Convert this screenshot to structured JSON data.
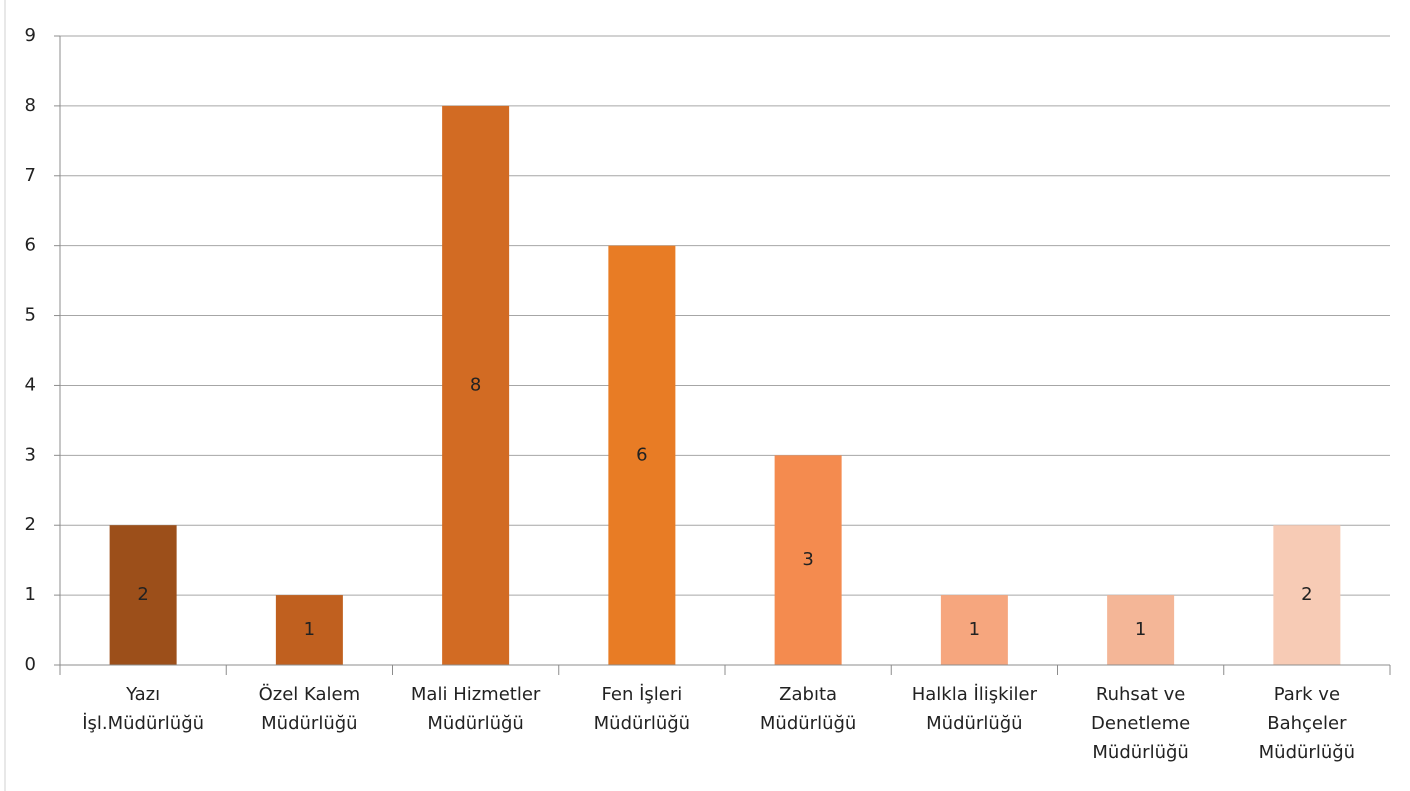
{
  "chart_data": {
    "type": "bar",
    "categories": [
      [
        "Yazı",
        "İşl.Müdürlüğü"
      ],
      [
        "Özel Kalem",
        "Müdürlüğü"
      ],
      [
        "Mali Hizmetler",
        "Müdürlüğü"
      ],
      [
        "Fen İşleri",
        "Müdürlüğü"
      ],
      [
        "Zabıta",
        "Müdürlüğü"
      ],
      [
        "Halkla İlişkiler",
        "Müdürlüğü"
      ],
      [
        "Ruhsat ve",
        "Denetleme",
        "Müdürlüğü"
      ],
      [
        "Park ve",
        "Bahçeler",
        "Müdürlüğü"
      ]
    ],
    "values": [
      2,
      1,
      8,
      6,
      3,
      1,
      1,
      2
    ],
    "colors": [
      "#9c4f1a",
      "#c0601f",
      "#d26b23",
      "#e87c25",
      "#f48b4f",
      "#f6a67e",
      "#f4b697",
      "#f7cbb5"
    ],
    "ylim": [
      0,
      9
    ],
    "yticks": [
      0,
      1,
      2,
      3,
      4,
      5,
      6,
      7,
      8,
      9
    ],
    "grid": true
  }
}
